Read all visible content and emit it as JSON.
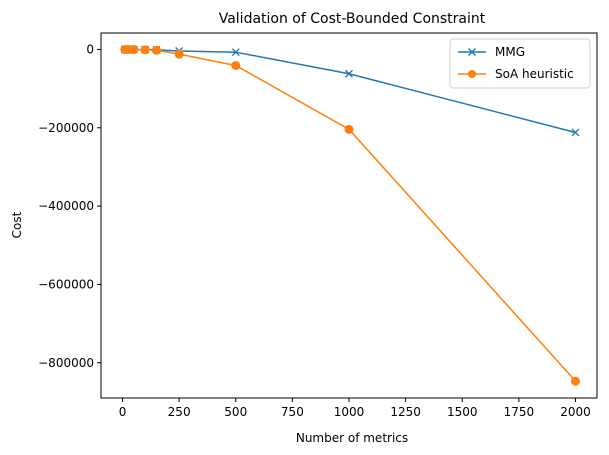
{
  "chart_data": {
    "type": "line",
    "title": "Validation of Cost-Bounded Constraint",
    "xlabel": "Number of metrics",
    "ylabel": "Cost",
    "xlim": [
      -95,
      2095
    ],
    "ylim": [
      -890000,
      42000
    ],
    "xticks": [
      0,
      250,
      500,
      750,
      1000,
      1250,
      1500,
      1750,
      2000
    ],
    "yticks": [
      0,
      -200000,
      -400000,
      -600000,
      -800000
    ],
    "xtick_labels": [
      "0",
      "250",
      "500",
      "750",
      "1000",
      "1250",
      "1500",
      "1750",
      "2000"
    ],
    "ytick_labels": [
      "0",
      "−200000",
      "−400000",
      "−600000",
      "−800000"
    ],
    "grid": false,
    "legend_position": "top-right",
    "series": [
      {
        "name": "MMG",
        "color": "#1f77b4",
        "marker": "x",
        "x": [
          10,
          20,
          30,
          50,
          100,
          150,
          250,
          500,
          1000,
          2000
        ],
        "y": [
          0,
          0,
          0,
          0,
          -500,
          -1000,
          -4000,
          -7000,
          -62000,
          -212000
        ]
      },
      {
        "name": "SoA heuristic",
        "color": "#ff7f0e",
        "marker": "o",
        "x": [
          10,
          20,
          30,
          50,
          100,
          150,
          250,
          500,
          1000,
          2000
        ],
        "y": [
          0,
          0,
          0,
          0,
          -1000,
          -2000,
          -12000,
          -41000,
          -204000,
          -847000
        ]
      }
    ]
  }
}
